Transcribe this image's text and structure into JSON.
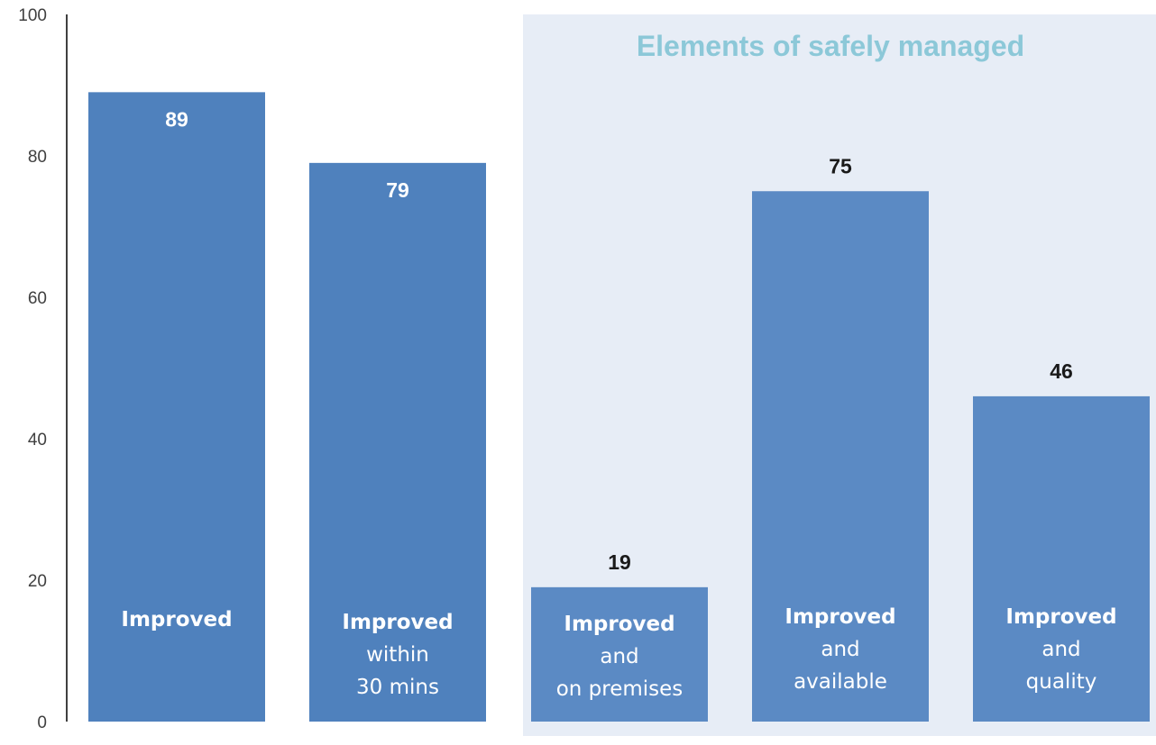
{
  "chart_data": {
    "type": "bar",
    "title": "",
    "xlabel": "",
    "ylabel": "",
    "ylim": [
      0,
      100
    ],
    "yticks": [
      0,
      20,
      40,
      60,
      80,
      100
    ],
    "grid": false,
    "categories": [
      "Improved",
      "Improved within 30 mins",
      "Improved and on premises",
      "Improved and available",
      "Improved and quality"
    ],
    "values": [
      89,
      79,
      19,
      75,
      46
    ],
    "bar_labels": [
      [
        "Improved"
      ],
      [
        "Improved",
        "within",
        "30 mins"
      ],
      [
        "Improved",
        "and",
        "on premises"
      ],
      [
        "Improved",
        "and",
        "available"
      ],
      [
        "Improved",
        "and",
        "quality"
      ]
    ],
    "highlight_group": {
      "title": "Elements of safely managed",
      "category_indices": [
        2,
        3,
        4
      ]
    },
    "colors": {
      "bar_primary": "#4f81bd",
      "bar_highlight": "#5b8ac4",
      "panel_background": "#e7edf6",
      "panel_title": "#8cc8d8",
      "value_inside": "#ffffff",
      "value_outside": "#1a1a1a",
      "axis": "#000000"
    }
  }
}
